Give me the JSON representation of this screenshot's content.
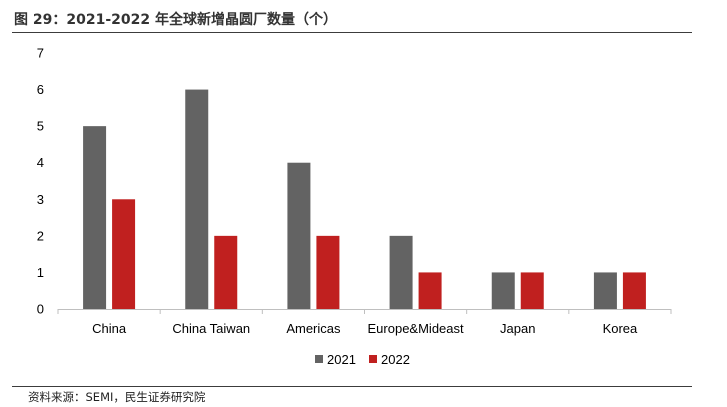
{
  "figure": {
    "title": "图 29：2021-2022 年全球新增晶圆厂数量（个）",
    "source": "资料来源：SEMI，民生证券研究院"
  },
  "chart_data": {
    "type": "bar",
    "title": "",
    "xlabel": "",
    "ylabel": "",
    "categories": [
      "China",
      "China Taiwan",
      "Americas",
      "Europe&Mideast",
      "Japan",
      "Korea"
    ],
    "series": [
      {
        "name": "2021",
        "values": [
          5,
          6,
          4,
          2,
          1,
          1
        ],
        "color": "#636363"
      },
      {
        "name": "2022",
        "values": [
          3,
          2,
          2,
          1,
          1,
          1
        ],
        "color": "#c0201f"
      }
    ],
    "ylim": [
      0,
      7
    ],
    "yticks": [
      "0",
      "1",
      "2",
      "3",
      "4",
      "5",
      "6",
      "7"
    ],
    "grid": false,
    "legend_position": "bottom"
  }
}
